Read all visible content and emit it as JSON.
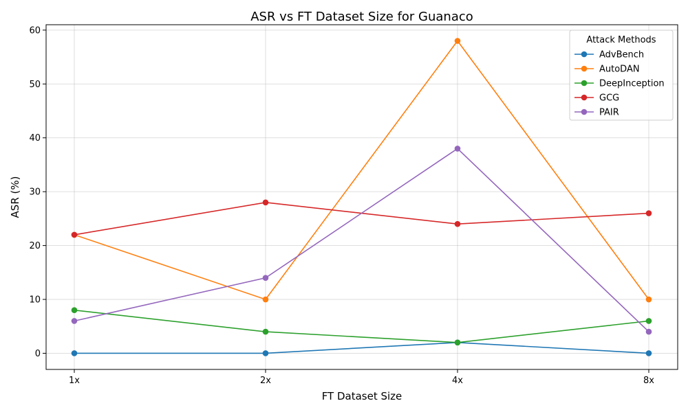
{
  "chart_data": {
    "type": "line",
    "title": "ASR vs FT Dataset Size for Guanaco",
    "xlabel": "FT Dataset Size",
    "ylabel": "ASR (%)",
    "categories": [
      "1x",
      "2x",
      "4x",
      "8x"
    ],
    "ylim": [
      -3,
      61
    ],
    "yticks": [
      0,
      10,
      20,
      30,
      40,
      50,
      60
    ],
    "grid": true,
    "legend": {
      "title": "Attack Methods",
      "placement": "top-right"
    },
    "series": [
      {
        "name": "AdvBench",
        "color": "#1f77b4",
        "values": [
          0,
          0,
          2,
          0
        ]
      },
      {
        "name": "AutoDAN",
        "color": "#ff7f0e",
        "values": [
          22,
          10,
          58,
          10
        ]
      },
      {
        "name": "DeepInception",
        "color": "#2ca02c",
        "values": [
          8,
          4,
          2,
          6
        ]
      },
      {
        "name": "GCG",
        "color": "#d62728",
        "values": [
          22,
          28,
          24,
          26
        ]
      },
      {
        "name": "PAIR",
        "color": "#9467bd",
        "values": [
          6,
          14,
          38,
          4
        ]
      }
    ]
  }
}
